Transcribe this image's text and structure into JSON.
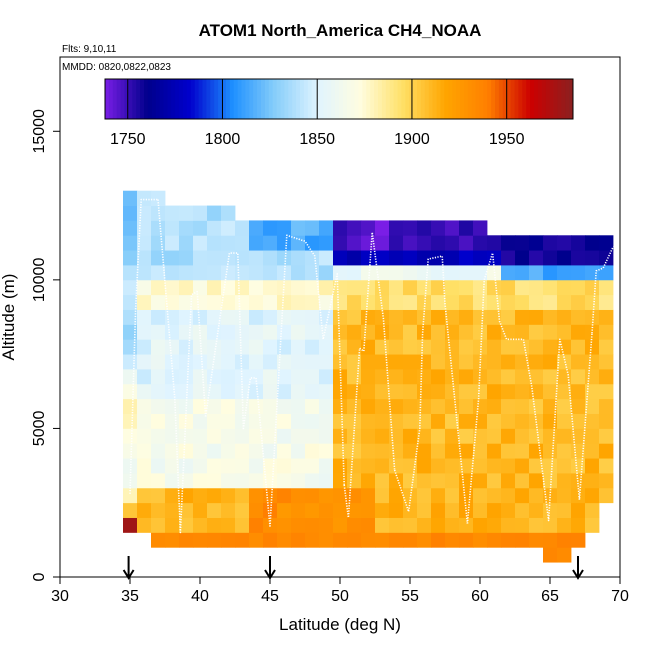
{
  "chart_data": {
    "type": "heatmap",
    "title": "ATOM1 North_America CH4_NOAA",
    "annotations": {
      "flights": "Flts: 9,10,11",
      "dates": "MMDD: 0820,0822,0823"
    },
    "xlabel": "Latitude (deg N)",
    "ylabel": "Altitude (m)",
    "xlim": [
      30,
      70
    ],
    "ylim": [
      0,
      17500
    ],
    "x_ticks": [
      "30",
      "35",
      "40",
      "45",
      "50",
      "55",
      "60",
      "65",
      "70"
    ],
    "y_ticks": [
      "0",
      "5000",
      "10000",
      "15000"
    ],
    "colorbar": {
      "range": [
        1738,
        1985
      ],
      "tick_values": [
        1750,
        1800,
        1850,
        1900,
        1950
      ],
      "tick_labels": [
        "1750",
        "1800",
        "1850",
        "1900",
        "1950"
      ],
      "colors": [
        "#7a1ee6",
        "#00008c",
        "#0000cd",
        "#1e90ff",
        "#87cefa",
        "#e0f4ff",
        "#fffde0",
        "#ffe066",
        "#ffa500",
        "#ff7f00",
        "#cc0000",
        "#8b2020"
      ]
    },
    "profile_markers": {
      "latitudes": [
        34.9,
        45.0,
        67.0
      ],
      "symbol": "down-arrow"
    },
    "bin_width_deg": 1,
    "bin_height_m": 500,
    "cells": [
      {
        "lat": 35,
        "alt": 1750,
        "ch4": 1978
      },
      {
        "lat": 35,
        "alt": 2250,
        "ch4": 1905
      },
      {
        "lat": 35,
        "alt": 2750,
        "ch4": 1880
      },
      {
        "lat": 35,
        "alt": 3250,
        "ch4": 1862
      },
      {
        "lat": 35,
        "alt": 3750,
        "ch4": 1860
      },
      {
        "lat": 35,
        "alt": 4250,
        "ch4": 1868
      },
      {
        "lat": 35,
        "alt": 4750,
        "ch4": 1872
      },
      {
        "lat": 35,
        "alt": 5250,
        "ch4": 1880
      },
      {
        "lat": 35,
        "alt": 5750,
        "ch4": 1882
      },
      {
        "lat": 35,
        "alt": 6250,
        "ch4": 1870
      },
      {
        "lat": 35,
        "alt": 6750,
        "ch4": 1860
      },
      {
        "lat": 35,
        "alt": 7250,
        "ch4": 1845
      },
      {
        "lat": 35,
        "alt": 7750,
        "ch4": 1835
      },
      {
        "lat": 35,
        "alt": 8250,
        "ch4": 1830
      },
      {
        "lat": 35,
        "alt": 8750,
        "ch4": 1838
      },
      {
        "lat": 35,
        "alt": 9250,
        "ch4": 1842
      },
      {
        "lat": 35,
        "alt": 9750,
        "ch4": 1845
      },
      {
        "lat": 35,
        "alt": 10250,
        "ch4": 1840
      },
      {
        "lat": 35,
        "alt": 10750,
        "ch4": 1828
      },
      {
        "lat": 35,
        "alt": 11250,
        "ch4": 1825
      },
      {
        "lat": 35,
        "alt": 11750,
        "ch4": 1822
      },
      {
        "lat": 35,
        "alt": 12250,
        "ch4": 1820
      },
      {
        "lat": 35,
        "alt": 12750,
        "ch4": 1822
      }
    ]
  }
}
